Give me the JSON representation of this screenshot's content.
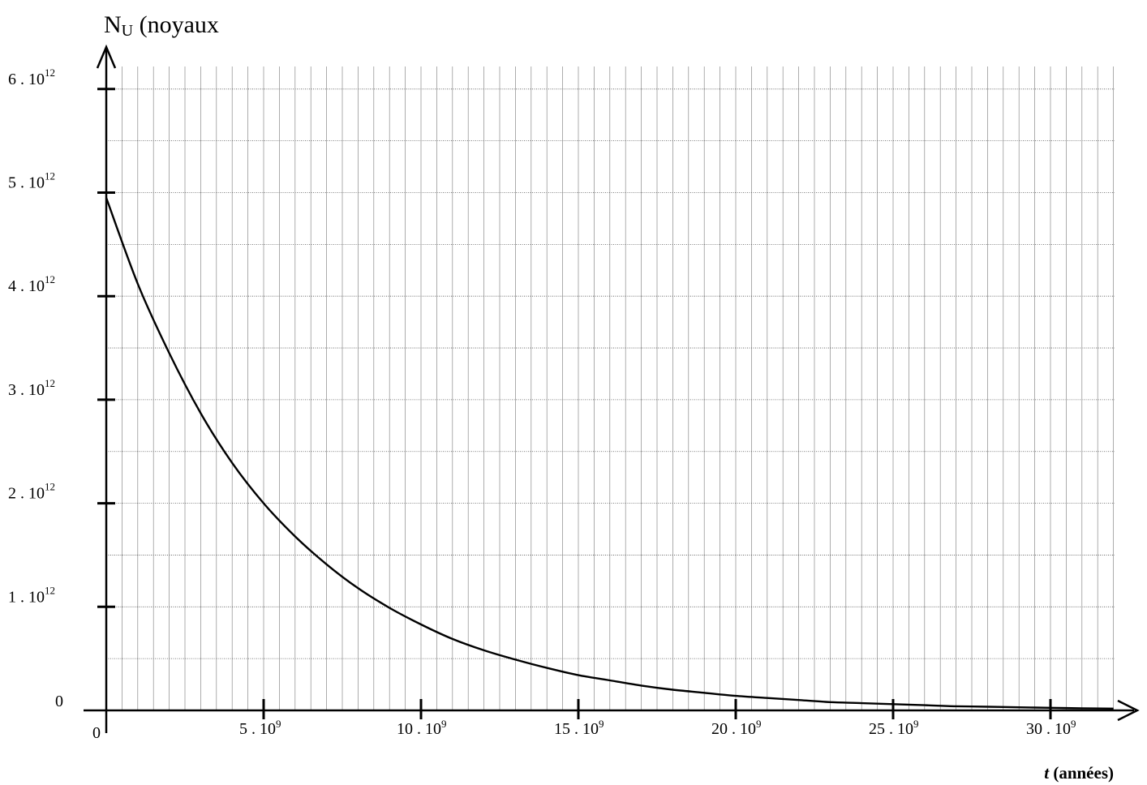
{
  "chart_data": {
    "type": "line",
    "ylabel": {
      "main": "N",
      "sub": "U",
      "rest": " (noyaux"
    },
    "xlabel": {
      "italic": "t",
      "rest": " (années)"
    },
    "x_unit_exp": "9",
    "y_unit_exp": "12",
    "xlim": [
      0,
      32
    ],
    "ylim": [
      0,
      6
    ],
    "x_ticks": [
      {
        "value": 5,
        "mant": "5 . 10"
      },
      {
        "value": 10,
        "mant": "10 . 10"
      },
      {
        "value": 15,
        "mant": "15 . 10"
      },
      {
        "value": 20,
        "mant": "20 . 10"
      },
      {
        "value": 25,
        "mant": "25 . 10"
      },
      {
        "value": 30,
        "mant": "30 . 10"
      }
    ],
    "y_ticks": [
      {
        "value": 1,
        "mant": "1 . 10"
      },
      {
        "value": 2,
        "mant": "2 . 10"
      },
      {
        "value": 3,
        "mant": "3 . 10"
      },
      {
        "value": 4,
        "mant": "4 . 10"
      },
      {
        "value": 5,
        "mant": "5 . 10"
      },
      {
        "value": 6,
        "mant": "6 . 10"
      }
    ],
    "origin_x_label": "0",
    "origin_y_label": "0",
    "grid": {
      "vertical_step": 0.5,
      "horizontal_step": 0.5
    },
    "series": [
      {
        "x": [
          0,
          1,
          2,
          3,
          4,
          5,
          6,
          7,
          8,
          9,
          10,
          11,
          12,
          13,
          14,
          15,
          16,
          17,
          18,
          19,
          20,
          21,
          22,
          23,
          24,
          25,
          26,
          27,
          28,
          29,
          30,
          31,
          32
        ],
        "values": [
          4.95,
          4.12,
          3.45,
          2.87,
          2.39,
          2.0,
          1.68,
          1.41,
          1.18,
          0.99,
          0.83,
          0.69,
          0.58,
          0.49,
          0.41,
          0.34,
          0.29,
          0.24,
          0.2,
          0.17,
          0.14,
          0.12,
          0.1,
          0.08,
          0.07,
          0.06,
          0.05,
          0.04,
          0.035,
          0.03,
          0.025,
          0.02,
          0.017
        ]
      }
    ]
  }
}
